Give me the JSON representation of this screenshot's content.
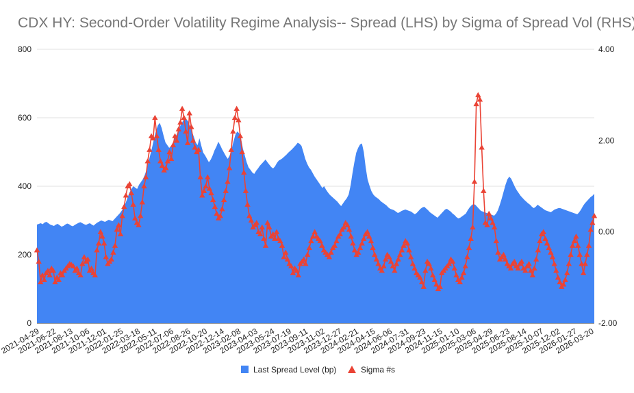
{
  "chart_data": {
    "type": "area+line",
    "title": "CDX HY: Second-Order Volatility Regime Analysis-- Spread (LHS) by Sigma of Spread Vol (RHS)",
    "xlabel": "",
    "ylabel_left": "",
    "ylabel_right": "",
    "ylim_left": [
      0,
      800
    ],
    "ylim_right": [
      -2.0,
      4.0
    ],
    "yticks_left": [
      "0",
      "200",
      "400",
      "600",
      "800"
    ],
    "yticks_right": [
      "-2.00",
      "0.00",
      "2.00",
      "4.00"
    ],
    "x_tick_labels": [
      "2021-04-29",
      "2021-06-22",
      "2021-08-13",
      "2021-10-06",
      "2021-12-01",
      "2022-01-25",
      "2022-03-18",
      "2022-05-11",
      "2022-07-06",
      "2022-08-26",
      "2022-10-20",
      "2022-12-14",
      "2023-02-08",
      "2023-04-03",
      "2023-05-24",
      "2023-07-19",
      "2023-09-11",
      "2023-11-02",
      "2023-12-27",
      "2024-02-21",
      "2024-04-15",
      "2024-06-06",
      "2024-07-31",
      "2024-09-23",
      "2024-11-15",
      "2025-01-10",
      "2025-03-06",
      "2025-04-29",
      "2025-06-23",
      "2025-08-14",
      "2025-10-07",
      "2025-12-02",
      "2026-01-27",
      "2026-03-20"
    ],
    "legend_position": "bottom",
    "grid": true,
    "colors": {
      "spread": "#4285f4",
      "sigma": "#ea4335",
      "grid": "#e0e0e0",
      "text": "#222222",
      "title": "#757575"
    },
    "series": [
      {
        "name": "Last Spread Level (bp)",
        "type": "area",
        "axis": "left",
        "values": [
          288,
          290,
          292,
          289,
          294,
          296,
          292,
          288,
          286,
          284,
          288,
          290,
          286,
          282,
          284,
          288,
          291,
          289,
          285,
          283,
          287,
          290,
          293,
          295,
          292,
          289,
          287,
          290,
          292,
          288,
          285,
          290,
          294,
          297,
          300,
          298,
          296,
          299,
          302,
          300,
          298,
          304,
          310,
          316,
          322,
          330,
          340,
          352,
          368,
          382,
          392,
          400,
          396,
          392,
          404,
          412,
          420,
          432,
          448,
          470,
          492,
          515,
          540,
          562,
          578,
          585,
          570,
          548,
          528,
          520,
          512,
          518,
          528,
          540,
          552,
          565,
          578,
          588,
          598,
          596,
          590,
          576,
          560,
          545,
          528,
          520,
          540,
          518,
          498,
          490,
          480,
          470,
          478,
          490,
          505,
          516,
          530,
          520,
          508,
          498,
          488,
          480,
          490,
          508,
          530,
          550,
          560,
          555,
          540,
          510,
          490,
          470,
          455,
          448,
          440,
          436,
          445,
          452,
          460,
          466,
          472,
          478,
          470,
          463,
          456,
          452,
          458,
          468,
          475,
          478,
          482,
          487,
          492,
          498,
          503,
          508,
          514,
          520,
          527,
          524,
          518,
          500,
          480,
          466,
          455,
          448,
          438,
          428,
          420,
          412,
          404,
          395,
          400,
          390,
          382,
          375,
          370,
          365,
          360,
          355,
          348,
          342,
          350,
          358,
          365,
          376,
          402,
          438,
          470,
          498,
          512,
          522,
          525,
          500,
          455,
          420,
          402,
          386,
          376,
          370,
          366,
          362,
          356,
          352,
          348,
          344,
          338,
          334,
          332,
          330,
          326,
          322,
          324,
          328,
          330,
          332,
          330,
          328,
          326,
          322,
          318,
          322,
          328,
          334,
          338,
          340,
          335,
          330,
          324,
          320,
          316,
          312,
          308,
          314,
          320,
          326,
          332,
          334,
          330,
          326,
          320,
          316,
          310,
          306,
          308,
          312,
          316,
          320,
          330,
          338,
          344,
          348,
          346,
          340,
          334,
          328,
          326,
          324,
          322,
          320,
          318,
          316,
          314,
          320,
          330,
          346,
          364,
          384,
          404,
          420,
          428,
          422,
          410,
          398,
          388,
          380,
          372,
          366,
          360,
          355,
          350,
          346,
          340,
          336,
          340,
          346,
          342,
          338,
          334,
          330,
          328,
          326,
          324,
          328,
          332,
          334,
          336,
          336,
          334,
          332,
          330,
          328,
          326,
          324,
          322,
          320,
          318,
          324,
          332,
          342,
          350,
          356,
          362,
          368,
          372,
          378
        ]
      },
      {
        "name": "Sigma #s",
        "type": "line",
        "axis": "right",
        "marker": "triangle",
        "values": [
          -0.4,
          -0.65,
          -1.1,
          -0.95,
          -1.05,
          -0.9,
          -0.85,
          -0.95,
          -0.8,
          -0.85,
          -1.1,
          -1.0,
          -1.05,
          -0.9,
          -0.95,
          -0.85,
          -0.8,
          -0.75,
          -0.7,
          -0.72,
          -0.75,
          -0.85,
          -0.8,
          -0.9,
          -0.95,
          -0.7,
          -0.55,
          -0.65,
          -0.6,
          -0.85,
          -0.8,
          -0.9,
          -0.95,
          -0.4,
          -0.25,
          0.0,
          -0.1,
          -0.25,
          -0.55,
          -0.7,
          -0.65,
          -0.6,
          -0.45,
          -0.3,
          0.05,
          0.15,
          -0.05,
          0.35,
          0.55,
          0.8,
          1.0,
          1.05,
          0.85,
          0.6,
          0.3,
          0.2,
          0.15,
          0.35,
          0.65,
          1.0,
          1.2,
          1.55,
          1.8,
          2.1,
          2.05,
          2.5,
          2.1,
          1.8,
          1.55,
          1.45,
          1.35,
          1.4,
          1.55,
          1.75,
          1.6,
          1.9,
          2.1,
          2.0,
          2.25,
          2.4,
          2.7,
          2.5,
          2.2,
          1.95,
          2.6,
          2.3,
          2.0,
          1.85,
          1.75,
          1.8,
          1.2,
          0.8,
          0.9,
          1.0,
          1.2,
          0.95,
          0.85,
          0.7,
          0.55,
          0.4,
          0.3,
          0.35,
          0.5,
          0.7,
          0.9,
          1.1,
          1.4,
          1.8,
          2.2,
          2.5,
          2.7,
          2.45,
          2.1,
          1.75,
          1.3,
          0.9,
          0.6,
          0.35,
          0.25,
          0.1,
          0.15,
          0.2,
          0.0,
          -0.05,
          0.1,
          -0.15,
          -0.3,
          0.2,
          0.1,
          -0.1,
          -0.05,
          -0.15,
          0.0,
          -0.15,
          -0.2,
          -0.3,
          -0.55,
          -0.45,
          -0.6,
          -0.7,
          -0.75,
          -0.9,
          -0.8,
          -0.85,
          -0.95,
          -0.7,
          -0.65,
          -0.6,
          -0.7,
          -0.5,
          -0.35,
          -0.2,
          -0.1,
          0.0,
          -0.1,
          -0.15,
          -0.2,
          -0.3,
          -0.4,
          -0.45,
          -0.5,
          -0.55,
          -0.45,
          -0.35,
          -0.3,
          -0.2,
          -0.1,
          -0.05,
          0.05,
          0.1,
          0.2,
          0.15,
          0.05,
          -0.1,
          -0.25,
          -0.4,
          -0.5,
          -0.45,
          -0.35,
          -0.25,
          -0.15,
          -0.05,
          0.0,
          -0.1,
          -0.2,
          -0.35,
          -0.5,
          -0.6,
          -0.7,
          -0.8,
          -0.85,
          -0.75,
          -0.6,
          -0.5,
          -0.55,
          -0.65,
          -0.75,
          -0.85,
          -0.7,
          -0.6,
          -0.5,
          -0.4,
          -0.3,
          -0.2,
          -0.25,
          -0.4,
          -0.55,
          -0.7,
          -0.8,
          -0.9,
          -0.95,
          -1.0,
          -1.1,
          -1.2,
          -0.85,
          -0.65,
          -0.7,
          -0.8,
          -0.95,
          -1.05,
          -1.15,
          -1.25,
          -1.2,
          -0.9,
          -0.85,
          -0.8,
          -0.75,
          -0.7,
          -0.6,
          -0.65,
          -0.8,
          -0.95,
          -1.05,
          -1.1,
          -1.0,
          -0.9,
          -0.75,
          -0.55,
          -0.35,
          -0.15,
          0.1,
          1.1,
          2.8,
          3.0,
          2.9,
          1.85,
          0.9,
          0.2,
          0.15,
          0.4,
          0.3,
          0.2,
          0.1,
          -0.2,
          -0.45,
          -0.6,
          -0.55,
          -0.5,
          -0.6,
          -0.7,
          -0.75,
          -0.8,
          -0.7,
          -0.65,
          -0.75,
          -0.8,
          -0.7,
          -0.65,
          -0.8,
          -0.85,
          -0.75,
          -0.7,
          -0.85,
          -0.95,
          -0.8,
          -0.6,
          -0.4,
          -0.2,
          -0.05,
          0.0,
          -0.15,
          -0.25,
          -0.35,
          -0.45,
          -0.55,
          -0.7,
          -0.85,
          -1.0,
          -1.1,
          -1.2,
          -1.15,
          -1.05,
          -0.9,
          -0.7,
          -0.5,
          -0.3,
          -0.2,
          -0.1,
          -0.3,
          -0.5,
          -0.7,
          -0.9,
          -0.7,
          -0.5,
          -0.3,
          0.05,
          0.2,
          0.35
        ]
      }
    ]
  }
}
